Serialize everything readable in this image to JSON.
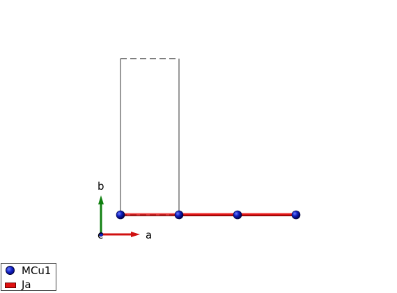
{
  "axes": {
    "a_label": "a",
    "b_label": "b",
    "c_label": "c"
  },
  "legend": {
    "items": [
      {
        "label": "MCu1",
        "kind": "sphere",
        "color": "#1020c0"
      },
      {
        "label": "Ja",
        "kind": "bond",
        "color": "#e01010"
      }
    ]
  },
  "colors": {
    "atom": "#1020c0",
    "bond": "#e01010",
    "cell": "#555555",
    "axis_a": "#d01010",
    "axis_b": "#108010"
  }
}
